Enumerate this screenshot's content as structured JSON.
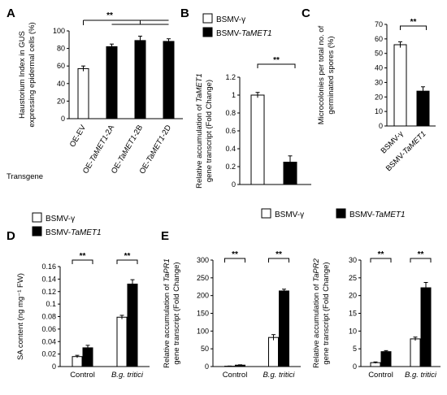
{
  "colors": {
    "open_bar": "#ffffff",
    "filled_bar": "#000000",
    "axis": "#000000"
  },
  "legend_items": [
    {
      "label": "BSMV-γ",
      "swatch": "open"
    },
    {
      "prefix": "BSMV-",
      "italic": "TaMET1",
      "swatch": "filled"
    }
  ],
  "chart_data": [
    {
      "panel": "A",
      "type": "bar",
      "ylabel_lines": [
        "Haustorium Index in GUS",
        "expressing  epidermal cells (%)"
      ],
      "ylim": [
        0,
        100
      ],
      "yticks": [
        "0",
        "20",
        "40",
        "60",
        "80",
        "100"
      ],
      "categories": [
        {
          "prefix": "OE-EV",
          "italic": "",
          "suffix": ""
        },
        {
          "prefix": "OE-",
          "italic": "TaMET1",
          "suffix": "-2A"
        },
        {
          "prefix": "OE-",
          "italic": "TaMET1",
          "suffix": "-2B"
        },
        {
          "prefix": "OE-",
          "italic": "TaMET1",
          "suffix": "-2D"
        }
      ],
      "values": [
        57,
        82,
        89,
        88
      ],
      "errors": [
        3,
        3,
        5,
        3
      ],
      "fills": [
        "open",
        "filled",
        "filled",
        "filled"
      ],
      "xlabel": "Transgene",
      "significance": "**"
    },
    {
      "panel": "B",
      "type": "bar",
      "ylabel_lines": [
        {
          "prefix": "Relative accumulation of ",
          "italic": "TaMET1"
        },
        {
          "prefix": "gene transcript  (Fold Change)",
          "italic": ""
        }
      ],
      "ylim": [
        0,
        1.2
      ],
      "yticks": [
        "0",
        "0.2",
        "0.4",
        "0.6",
        "0.8",
        "1",
        "1.2"
      ],
      "series": [
        {
          "name": "BSMV-γ",
          "values": [
            1.0
          ],
          "errors": [
            0.03
          ]
        },
        {
          "name": "BSMV-TaMET1",
          "values": [
            0.25
          ],
          "errors": [
            0.07
          ]
        }
      ],
      "significance": "**"
    },
    {
      "panel": "C",
      "type": "bar",
      "ylabel_lines": [
        "Microcolonies per total no. of",
        "germinated spores (%)"
      ],
      "ylim": [
        0,
        70
      ],
      "yticks": [
        "0",
        "10",
        "20",
        "30",
        "40",
        "50",
        "60",
        "70"
      ],
      "categories": [
        {
          "prefix": "BSMV-γ",
          "italic": ""
        },
        {
          "prefix": "BSMV-",
          "italic": "TaMET1"
        }
      ],
      "values": [
        56,
        24
      ],
      "errors": [
        2,
        3
      ],
      "significance": "**"
    },
    {
      "panel": "D",
      "type": "bar",
      "ylabel_lines": [
        "SA content (ng mg⁻¹ FW)"
      ],
      "ylim": [
        0,
        0.16
      ],
      "yticks": [
        "0",
        "0.02",
        "0.04",
        "0.06",
        "0.08",
        "0.1",
        "0.12",
        "0.14",
        "0.16"
      ],
      "categories": [
        "Control",
        "B.g. tritici"
      ],
      "series": [
        {
          "name": "BSMV-γ",
          "values": [
            0.016,
            0.079
          ],
          "errors": [
            0.002,
            0.003
          ]
        },
        {
          "name": "BSMV-TaMET1",
          "values": [
            0.03,
            0.132
          ],
          "errors": [
            0.004,
            0.007
          ]
        }
      ],
      "significance": [
        "**",
        "**"
      ]
    },
    {
      "panel": "E1",
      "type": "bar",
      "ylabel_lines": [
        {
          "prefix": "Relative accumulation of ",
          "italic": "TaPR1"
        },
        {
          "prefix": "gene transcript  (Fold Change)",
          "italic": ""
        }
      ],
      "ylim": [
        0,
        300
      ],
      "yticks": [
        "0",
        "50",
        "100",
        "150",
        "200",
        "250",
        "300"
      ],
      "categories": [
        "Control",
        "B.g. tritici"
      ],
      "series": [
        {
          "name": "BSMV-γ",
          "values": [
            1,
            82
          ],
          "errors": [
            0.5,
            8
          ]
        },
        {
          "name": "BSMV-TaMET1",
          "values": [
            4,
            213
          ],
          "errors": [
            1,
            5
          ]
        }
      ],
      "significance": [
        "**",
        "**"
      ]
    },
    {
      "panel": "E2",
      "type": "bar",
      "ylabel_lines": [
        {
          "prefix": "Relative accumulation of ",
          "italic": "TaPR2"
        },
        {
          "prefix": "gene transcript  (Fold Change)",
          "italic": ""
        }
      ],
      "ylim": [
        0,
        30
      ],
      "yticks": [
        "0",
        "5",
        "10",
        "15",
        "20",
        "25",
        "30"
      ],
      "categories": [
        "Control",
        "B.g. tritici"
      ],
      "series": [
        {
          "name": "BSMV-γ",
          "values": [
            1.1,
            7.8
          ],
          "errors": [
            0.2,
            0.5
          ]
        },
        {
          "name": "BSMV-TaMET1",
          "values": [
            4.2,
            22.2
          ],
          "errors": [
            0.3,
            1.5
          ]
        }
      ],
      "significance": [
        "**",
        "**"
      ]
    }
  ]
}
